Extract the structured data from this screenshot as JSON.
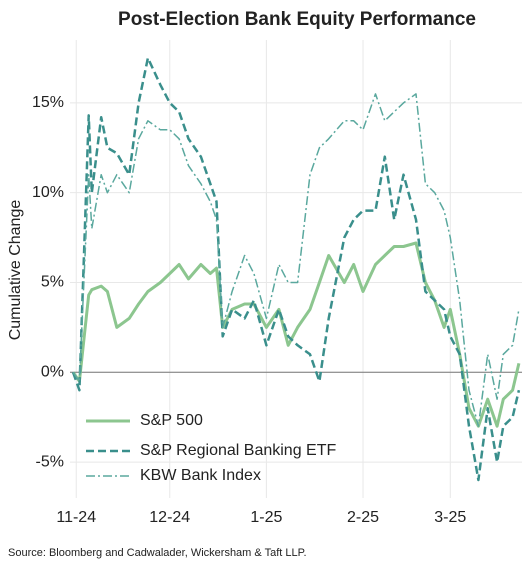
{
  "chart_data": {
    "type": "line",
    "title": "Post-Election Bank Equity Performance",
    "y_label": "Cumulative Change",
    "source": "Source: Bloomberg and Cadwalader, Wickersham & Taft LLP.",
    "x": [
      -1,
      1,
      4,
      5,
      8,
      10,
      13,
      17,
      20,
      23,
      27,
      30,
      33,
      36,
      40,
      43,
      45,
      47,
      50,
      54,
      57,
      61,
      65,
      68,
      71,
      75,
      78,
      81,
      86,
      89,
      92,
      96,
      99,
      102,
      105,
      109,
      112,
      115,
      118,
      120,
      123,
      126,
      129,
      132,
      135,
      137,
      140,
      142
    ],
    "series": [
      {
        "name": "S&P 500",
        "color": "#8cc68f",
        "style": "solid",
        "values": [
          0,
          -0.5,
          4.3,
          4.6,
          4.8,
          4.5,
          2.5,
          3,
          3.8,
          4.5,
          5,
          5.5,
          6,
          5.2,
          6,
          5.5,
          5.8,
          2.5,
          3.5,
          3.8,
          3.8,
          2.5,
          3.5,
          1.5,
          2.5,
          3.5,
          5,
          6.5,
          5,
          6,
          4.5,
          6,
          6.5,
          7,
          7,
          7.2,
          5,
          4,
          2.5,
          3.5,
          1,
          -2,
          -3,
          -1.5,
          -3,
          -1.5,
          -1,
          0.5
        ]
      },
      {
        "name": "S&P Regional Banking ETF",
        "color": "#3a8f8c",
        "style": "dashed",
        "values": [
          0,
          -1,
          14.3,
          10,
          14.2,
          12.5,
          12.2,
          11,
          15,
          17.5,
          16,
          15,
          14.5,
          13,
          12,
          10.5,
          9.5,
          2,
          3.5,
          3,
          4,
          1.5,
          3.5,
          2,
          1.5,
          1,
          -0.5,
          3,
          7.5,
          8.5,
          9,
          9,
          12,
          8.5,
          11,
          8.5,
          4.5,
          4,
          3.5,
          2,
          1,
          -3,
          -6,
          -2,
          -5,
          -3,
          -2.5,
          -1
        ]
      },
      {
        "name": "KBW Bank Index",
        "color": "#5aa89e",
        "style": "dashdot",
        "values": [
          0,
          -0.5,
          11,
          8,
          11,
          10,
          11,
          10,
          13,
          14,
          13.5,
          13.5,
          13,
          11.5,
          10.5,
          9.5,
          8.5,
          2.5,
          4.5,
          6.5,
          5.5,
          3,
          6,
          5,
          5,
          11,
          12.5,
          13,
          14,
          14,
          13.5,
          15.5,
          14,
          14.5,
          15,
          15.5,
          10.5,
          10,
          9,
          7.5,
          4,
          -1,
          -3,
          1,
          -1.5,
          1,
          1.5,
          3.5
        ]
      }
    ],
    "xlim": [
      -2,
      143
    ],
    "xticks": [
      {
        "value": 0,
        "label": "11-24"
      },
      {
        "value": 30,
        "label": "12-24"
      },
      {
        "value": 61,
        "label": "1-25"
      },
      {
        "value": 92,
        "label": "2-25"
      },
      {
        "value": 120,
        "label": "3-25"
      }
    ],
    "ylim": [
      -7,
      18.5
    ],
    "yticks": [
      {
        "value": -5,
        "label": "-5%"
      },
      {
        "value": 0,
        "label": "0%"
      },
      {
        "value": 5,
        "label": "5%"
      },
      {
        "value": 10,
        "label": "10%"
      },
      {
        "value": 15,
        "label": "15%"
      }
    ],
    "grid": true,
    "legend": "lower left"
  }
}
